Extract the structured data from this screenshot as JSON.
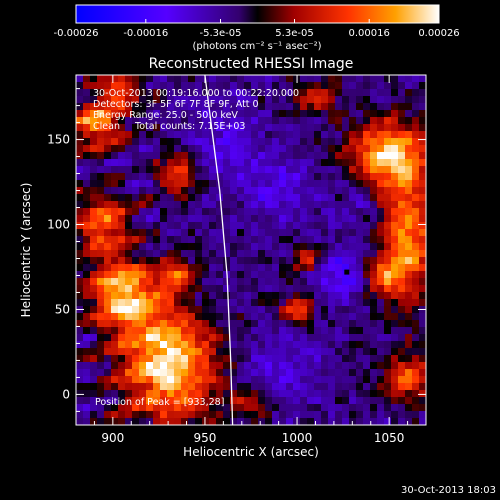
{
  "chart_data": {
    "type": "heatmap",
    "title": "Reconstructed RHESSI Image",
    "xlabel": "Heliocentric X (arcsec)",
    "ylabel": "Heliocentric Y (arcsec)",
    "xlim": [
      880,
      1070
    ],
    "ylim": [
      -18,
      188
    ],
    "x_ticks": [
      900,
      950,
      1000,
      1050
    ],
    "y_ticks": [
      0,
      50,
      100,
      150
    ],
    "colorbar": {
      "range": [
        -0.00026,
        0.00026
      ],
      "tick_values": [
        -0.00026,
        -0.00016,
        -5.3e-05,
        5.3e-05,
        0.00016,
        0.00026
      ],
      "tick_labels": [
        "-0.00026",
        "-0.00016",
        "-5.3e-05",
        "5.3e-05",
        "0.00016",
        "0.00026"
      ],
      "units_label": "(photons cm⁻² s⁻¹ asec⁻²)"
    },
    "annotations": {
      "time_range": "30-Oct-2013 00:19:16.000 to 00:22:20.000",
      "detectors": "Detectors: 3F 5F 6F 7F 8F 9F, Att 0",
      "energy_range": "Energy Range: 25.0 - 50.0 keV",
      "clean_counts": "Clean     Total counts: 7.15E+03",
      "peak_position": "Position of Peak = [933,28]"
    },
    "peak": {
      "x": 933,
      "y": 28
    },
    "limb_curve": [
      [
        950,
        188
      ],
      [
        958,
        120
      ],
      [
        962,
        70
      ],
      [
        964,
        20
      ],
      [
        965,
        -18
      ]
    ],
    "bright_regions": [
      {
        "x": 930,
        "y": 20,
        "amp": 1.0,
        "sx": 18,
        "sy": 25
      },
      {
        "x": 905,
        "y": 60,
        "amp": 0.9,
        "sx": 12,
        "sy": 14
      },
      {
        "x": 895,
        "y": 100,
        "amp": 0.7,
        "sx": 10,
        "sy": 12
      },
      {
        "x": 892,
        "y": 160,
        "amp": 0.8,
        "sx": 10,
        "sy": 10
      },
      {
        "x": 905,
        "y": 180,
        "amp": 0.6,
        "sx": 8,
        "sy": 6
      },
      {
        "x": 935,
        "y": 130,
        "amp": 0.6,
        "sx": 8,
        "sy": 8
      },
      {
        "x": 935,
        "y": 70,
        "amp": 0.6,
        "sx": 6,
        "sy": 6
      },
      {
        "x": 1050,
        "y": 140,
        "amp": 0.9,
        "sx": 15,
        "sy": 15
      },
      {
        "x": 1060,
        "y": 90,
        "amp": 0.8,
        "sx": 10,
        "sy": 25
      },
      {
        "x": 1045,
        "y": 70,
        "amp": 0.6,
        "sx": 8,
        "sy": 8
      },
      {
        "x": 1060,
        "y": 10,
        "amp": 0.6,
        "sx": 10,
        "sy": 10
      },
      {
        "x": 1000,
        "y": 50,
        "amp": 0.6,
        "sx": 6,
        "sy": 6
      },
      {
        "x": 1010,
        "y": 175,
        "amp": 0.5,
        "sx": 8,
        "sy": 6
      },
      {
        "x": 1005,
        "y": 80,
        "amp": 0.5,
        "sx": 6,
        "sy": 6
      },
      {
        "x": 975,
        "y": -5,
        "amp": 0.4,
        "sx": 8,
        "sy": 6
      }
    ],
    "dark_regions": [
      {
        "x": 1027,
        "y": 72,
        "amp": 1.0,
        "sx": 12,
        "sy": 10
      },
      {
        "x": 960,
        "y": 150,
        "amp": 0.6,
        "sx": 14,
        "sy": 16
      },
      {
        "x": 990,
        "y": 120,
        "amp": 0.6,
        "sx": 14,
        "sy": 14
      },
      {
        "x": 990,
        "y": 15,
        "amp": 0.6,
        "sx": 14,
        "sy": 14
      },
      {
        "x": 1035,
        "y": 115,
        "amp": 0.5,
        "sx": 10,
        "sy": 10
      },
      {
        "x": 950,
        "y": 50,
        "amp": 0.4,
        "sx": 10,
        "sy": 12
      }
    ]
  },
  "footer": {
    "timestamp": "30-Oct-2013 18:03"
  }
}
